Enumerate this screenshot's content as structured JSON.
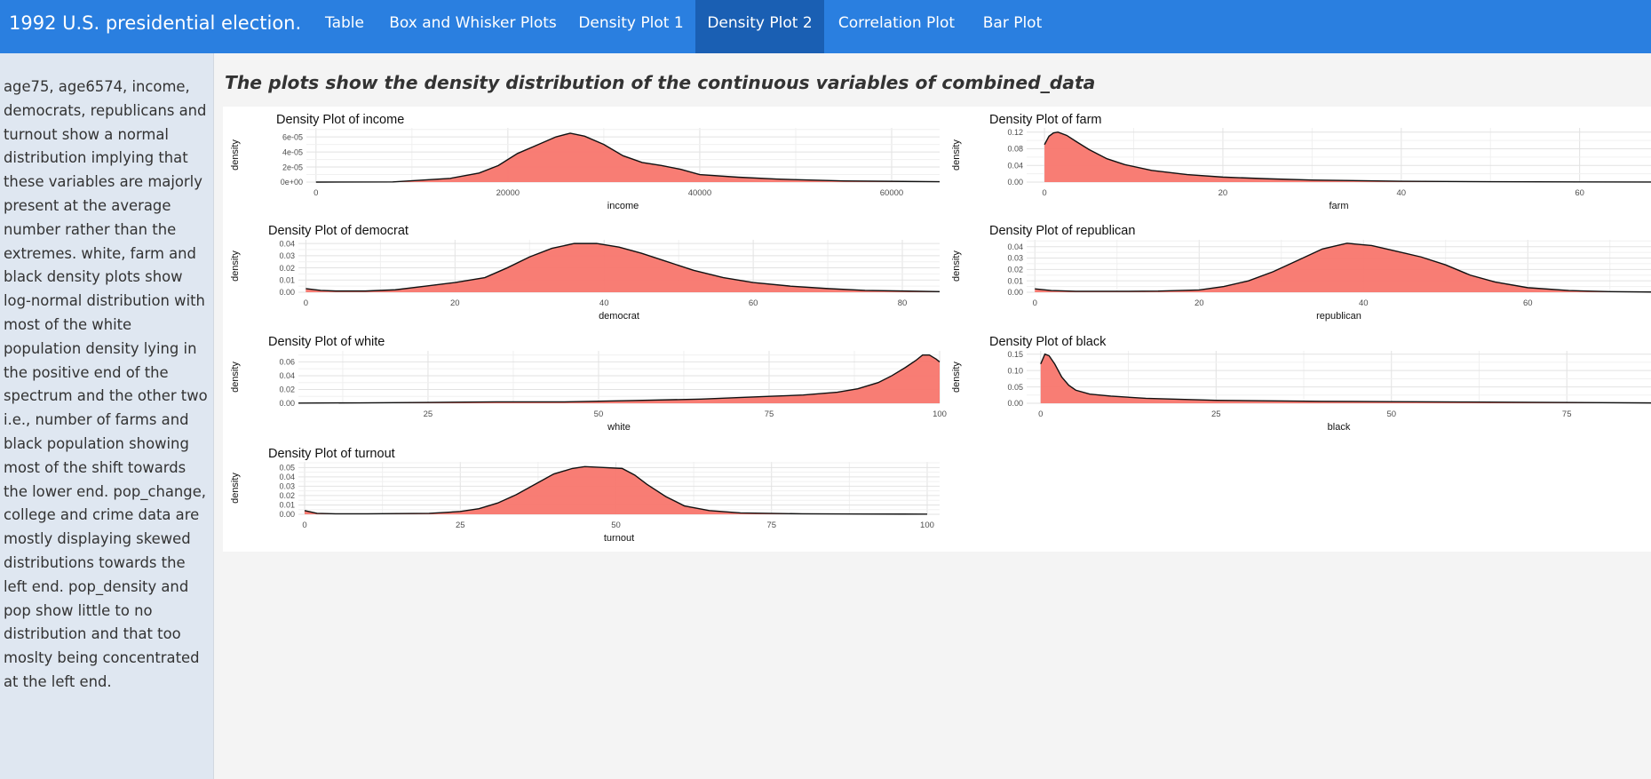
{
  "app": {
    "title": "1992 U.S. presidential election.",
    "tabs": [
      {
        "label": "Table",
        "active": false
      },
      {
        "label": "Box and Whisker Plots",
        "active": false
      },
      {
        "label": "Density Plot 1",
        "active": false
      },
      {
        "label": "Density Plot 2",
        "active": true
      },
      {
        "label": "Correlation Plot",
        "active": false
      },
      {
        "label": "Bar Plot",
        "active": false
      }
    ],
    "colors": {
      "navbar": "#2a7fe0",
      "active_tab": "#1a5fb3",
      "sidebar": "#dfe7f1",
      "density_fill": "#f8766d"
    }
  },
  "sidebar": {
    "text": "age75, age6574, income, democrats, republicans and turnout show a normal distribution implying that these variables are majorly present at the average number rather than the extremes. white, farm and black density plots show log-normal distribution with most of the white population density lying in the positive end of the spectrum and the other two i.e., number of farms and black population showing most of the shift towards the lower end. pop_change, college and crime data are mostly displaying skewed distributions towards the left end. pop_density and pop show little to no distribution and that too moslty being concentrated at the left end."
  },
  "main": {
    "heading": "The plots show the density distribution of the continuous variables of combined_data"
  },
  "chart_data": [
    {
      "type": "area",
      "title": "Density Plot of income",
      "xlabel": "income",
      "ylabel": "density",
      "xlim": [
        -1000,
        65000
      ],
      "ylim": [
        0,
        7.2e-05
      ],
      "xticks": [
        0,
        20000,
        40000,
        60000
      ],
      "xtick_labels": [
        "0",
        "20000",
        "40000",
        "60000"
      ],
      "yticks": [
        0,
        2e-05,
        4e-05,
        6e-05
      ],
      "ytick_labels": [
        "0e+00",
        "2e-05",
        "4e-05",
        "6e-05"
      ],
      "x": [
        0,
        8000,
        14000,
        17000,
        19000,
        21000,
        23000,
        25000,
        26500,
        28000,
        30000,
        32000,
        34000,
        36000,
        38000,
        40000,
        44000,
        48000,
        55000,
        65000
      ],
      "y": [
        0,
        2e-07,
        5e-06,
        1.2e-05,
        2.2e-05,
        3.8e-05,
        4.9e-05,
        6e-05,
        6.5e-05,
        6.1e-05,
        5e-05,
        3.5e-05,
        2.6e-05,
        2.2e-05,
        1.7e-05,
        1e-05,
        6.5e-06,
        4e-06,
        1.5e-06,
        5e-07
      ]
    },
    {
      "type": "area",
      "title": "Density Plot of farm",
      "xlabel": "farm",
      "ylabel": "density",
      "xlim": [
        -2,
        68
      ],
      "ylim": [
        0,
        0.13
      ],
      "xticks": [
        0,
        20,
        40,
        60
      ],
      "xtick_labels": [
        "0",
        "20",
        "40",
        "60"
      ],
      "yticks": [
        0,
        0.04,
        0.08,
        0.12
      ],
      "ytick_labels": [
        "0.00",
        "0.04",
        "0.08",
        "0.12"
      ],
      "x": [
        0,
        0.5,
        1,
        1.5,
        2.5,
        3.5,
        5,
        7,
        9,
        12,
        16,
        20,
        25,
        30,
        40,
        50,
        60,
        68
      ],
      "y": [
        0.09,
        0.11,
        0.118,
        0.12,
        0.112,
        0.098,
        0.078,
        0.056,
        0.042,
        0.028,
        0.018,
        0.012,
        0.008,
        0.005,
        0.002,
        0.001,
        0.0005,
        0.0002
      ]
    },
    {
      "type": "area",
      "title": "Density Plot of democrat",
      "xlabel": "democrat",
      "ylabel": "density",
      "xlim": [
        -1,
        85
      ],
      "ylim": [
        0,
        0.043
      ],
      "xticks": [
        0,
        20,
        40,
        60,
        80
      ],
      "xtick_labels": [
        "0",
        "20",
        "40",
        "60",
        "80"
      ],
      "yticks": [
        0,
        0.01,
        0.02,
        0.03,
        0.04
      ],
      "ytick_labels": [
        "0.00",
        "0.01",
        "0.02",
        "0.03",
        "0.04"
      ],
      "x": [
        0,
        2,
        4,
        8,
        12,
        16,
        20,
        24,
        27,
        30,
        33,
        36,
        39,
        42,
        45,
        48,
        52,
        56,
        60,
        65,
        70,
        75,
        80,
        85
      ],
      "y": [
        0.003,
        0.0015,
        0.001,
        0.001,
        0.002,
        0.005,
        0.008,
        0.012,
        0.02,
        0.029,
        0.036,
        0.04,
        0.04,
        0.037,
        0.032,
        0.026,
        0.018,
        0.012,
        0.008,
        0.005,
        0.003,
        0.0015,
        0.001,
        0.0005
      ]
    },
    {
      "type": "area",
      "title": "Density Plot of republican",
      "xlabel": "republican",
      "ylabel": "density",
      "xlim": [
        -1,
        75
      ],
      "ylim": [
        0,
        0.046
      ],
      "xticks": [
        0,
        20,
        40,
        60
      ],
      "xtick_labels": [
        "0",
        "20",
        "40",
        "60"
      ],
      "yticks": [
        0,
        0.01,
        0.02,
        0.03,
        0.04
      ],
      "ytick_labels": [
        "0.00",
        "0.01",
        "0.02",
        "0.03",
        "0.04"
      ],
      "x": [
        0,
        2,
        5,
        10,
        15,
        20,
        23,
        26,
        29,
        32,
        35,
        38,
        41,
        44,
        47,
        50,
        53,
        56,
        60,
        65,
        70,
        75
      ],
      "y": [
        0.003,
        0.0015,
        0.0008,
        0.0008,
        0.001,
        0.002,
        0.005,
        0.01,
        0.018,
        0.028,
        0.038,
        0.043,
        0.041,
        0.036,
        0.031,
        0.024,
        0.015,
        0.009,
        0.004,
        0.0015,
        0.0005,
        0.0002
      ]
    },
    {
      "type": "area",
      "title": "Density Plot of white",
      "xlabel": "white",
      "ylabel": "density",
      "xlim": [
        6,
        100
      ],
      "ylim": [
        0,
        0.076
      ],
      "xticks": [
        25,
        50,
        75,
        100
      ],
      "xtick_labels": [
        "25",
        "50",
        "75",
        "100"
      ],
      "yticks": [
        0,
        0.02,
        0.04,
        0.06
      ],
      "ytick_labels": [
        "0.00",
        "0.02",
        "0.04",
        "0.06"
      ],
      "x": [
        6,
        15,
        25,
        35,
        45,
        55,
        65,
        75,
        80,
        85,
        88,
        91,
        93,
        95,
        96.5,
        97.5,
        98.5,
        99.5,
        100
      ],
      "y": [
        0.0003,
        0.0006,
        0.0012,
        0.002,
        0.002,
        0.004,
        0.006,
        0.01,
        0.012,
        0.016,
        0.021,
        0.03,
        0.04,
        0.052,
        0.062,
        0.07,
        0.07,
        0.064,
        0.06
      ]
    },
    {
      "type": "area",
      "title": "Density Plot of black",
      "xlabel": "black",
      "ylabel": "density",
      "xlim": [
        -2,
        87
      ],
      "ylim": [
        0,
        0.16
      ],
      "xticks": [
        0,
        25,
        50,
        75
      ],
      "xtick_labels": [
        "0",
        "25",
        "50",
        "75"
      ],
      "yticks": [
        0,
        0.05,
        0.1,
        0.15
      ],
      "ytick_labels": [
        "0.00",
        "0.05",
        "0.10",
        "0.15"
      ],
      "x": [
        0,
        0.6,
        1.2,
        2,
        3,
        4,
        5,
        7,
        10,
        15,
        20,
        25,
        30,
        40,
        50,
        60,
        70,
        80,
        87
      ],
      "y": [
        0.12,
        0.15,
        0.145,
        0.12,
        0.08,
        0.055,
        0.04,
        0.028,
        0.022,
        0.015,
        0.012,
        0.009,
        0.008,
        0.006,
        0.005,
        0.004,
        0.003,
        0.002,
        0.001
      ]
    },
    {
      "type": "area",
      "title": "Density Plot of turnout",
      "xlabel": "turnout",
      "ylabel": "density",
      "xlim": [
        -1,
        102
      ],
      "ylim": [
        0,
        0.056
      ],
      "xticks": [
        0,
        25,
        50,
        75,
        100
      ],
      "xtick_labels": [
        "0",
        "25",
        "50",
        "75",
        "100"
      ],
      "yticks": [
        0,
        0.01,
        0.02,
        0.03,
        0.04,
        0.05
      ],
      "ytick_labels": [
        "0.00",
        "0.01",
        "0.02",
        "0.03",
        "0.04",
        "0.05"
      ],
      "x": [
        0,
        2,
        5,
        10,
        15,
        20,
        25,
        28,
        31,
        34,
        37,
        40,
        43,
        45,
        48,
        51,
        53,
        55,
        58,
        61,
        65,
        70,
        80,
        90,
        100
      ],
      "y": [
        0.004,
        0.001,
        0.0005,
        0.0005,
        0.0008,
        0.001,
        0.003,
        0.006,
        0.012,
        0.021,
        0.032,
        0.043,
        0.049,
        0.051,
        0.05,
        0.049,
        0.042,
        0.032,
        0.019,
        0.009,
        0.004,
        0.0015,
        0.0005,
        0.0003,
        0.0002
      ]
    }
  ]
}
